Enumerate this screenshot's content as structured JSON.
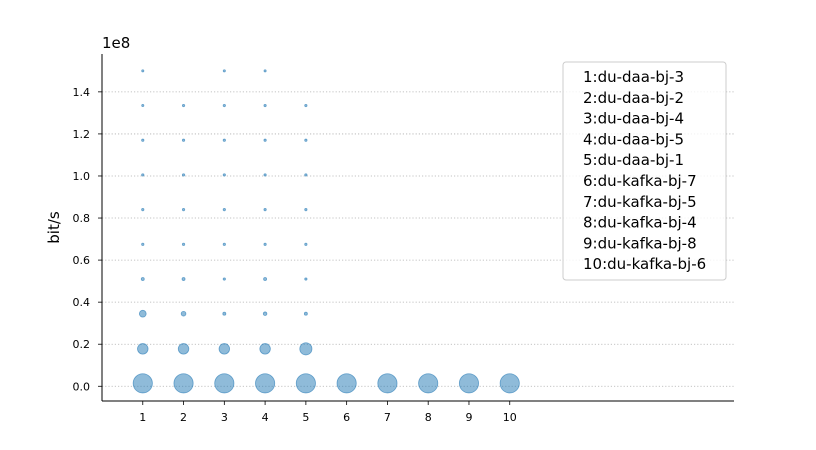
{
  "chart_data": {
    "type": "scatter",
    "title": "",
    "xlabel": "",
    "ylabel": "bit/s",
    "y_offset_label": "1e8",
    "x_ticks": [
      1,
      2,
      3,
      4,
      5,
      6,
      7,
      8,
      9,
      10
    ],
    "y_ticks": [
      0.0,
      0.2,
      0.4,
      0.6,
      0.8,
      1.0,
      1.2,
      1.4
    ],
    "y_tick_labels": [
      "0.0",
      "0.2",
      "0.4",
      "0.6",
      "0.8",
      "1.0",
      "1.2",
      "1.4"
    ],
    "xlim": [
      0,
      15.5
    ],
    "ylim": [
      -0.07,
      1.58
    ],
    "grid": "y-dotted",
    "color": "#1f77b4",
    "legend_position": "top-right",
    "legend": [
      "1:du-daa-bj-3",
      "2:du-daa-bj-2",
      "3:du-daa-bj-4",
      "4:du-daa-bj-5",
      "5:du-daa-bj-1",
      "6:du-kafka-bj-7",
      "7:du-kafka-bj-5",
      "8:du-kafka-bj-4",
      "9:du-kafka-bj-8",
      "10:du-kafka-bj-6"
    ],
    "points": [
      {
        "x": 1,
        "y": 0.014,
        "size": 200
      },
      {
        "x": 1,
        "y": 0.178,
        "size": 60
      },
      {
        "x": 1,
        "y": 0.345,
        "size": 25
      },
      {
        "x": 1,
        "y": 0.51,
        "size": 5
      },
      {
        "x": 1,
        "y": 0.675,
        "size": 3
      },
      {
        "x": 1,
        "y": 0.84,
        "size": 3
      },
      {
        "x": 1,
        "y": 1.005,
        "size": 3
      },
      {
        "x": 1,
        "y": 1.17,
        "size": 3
      },
      {
        "x": 1,
        "y": 1.335,
        "size": 2
      },
      {
        "x": 1,
        "y": 1.5,
        "size": 2
      },
      {
        "x": 2,
        "y": 0.014,
        "size": 200
      },
      {
        "x": 2,
        "y": 0.178,
        "size": 60
      },
      {
        "x": 2,
        "y": 0.345,
        "size": 12
      },
      {
        "x": 2,
        "y": 0.51,
        "size": 5
      },
      {
        "x": 2,
        "y": 0.675,
        "size": 3
      },
      {
        "x": 2,
        "y": 0.84,
        "size": 3
      },
      {
        "x": 2,
        "y": 1.005,
        "size": 3
      },
      {
        "x": 2,
        "y": 1.17,
        "size": 3
      },
      {
        "x": 2,
        "y": 1.335,
        "size": 3
      },
      {
        "x": 3,
        "y": 0.014,
        "size": 200
      },
      {
        "x": 3,
        "y": 0.178,
        "size": 60
      },
      {
        "x": 3,
        "y": 0.345,
        "size": 5
      },
      {
        "x": 3,
        "y": 0.51,
        "size": 3
      },
      {
        "x": 3,
        "y": 0.675,
        "size": 3
      },
      {
        "x": 3,
        "y": 0.84,
        "size": 3
      },
      {
        "x": 3,
        "y": 1.005,
        "size": 3
      },
      {
        "x": 3,
        "y": 1.17,
        "size": 3
      },
      {
        "x": 3,
        "y": 1.335,
        "size": 3
      },
      {
        "x": 3,
        "y": 1.5,
        "size": 2
      },
      {
        "x": 4,
        "y": 0.014,
        "size": 200
      },
      {
        "x": 4,
        "y": 0.178,
        "size": 60
      },
      {
        "x": 4,
        "y": 0.345,
        "size": 7
      },
      {
        "x": 4,
        "y": 0.51,
        "size": 5
      },
      {
        "x": 4,
        "y": 0.675,
        "size": 3
      },
      {
        "x": 4,
        "y": 0.84,
        "size": 3
      },
      {
        "x": 4,
        "y": 1.005,
        "size": 3
      },
      {
        "x": 4,
        "y": 1.17,
        "size": 3
      },
      {
        "x": 4,
        "y": 1.335,
        "size": 3
      },
      {
        "x": 4,
        "y": 1.5,
        "size": 2
      },
      {
        "x": 5,
        "y": 0.014,
        "size": 200
      },
      {
        "x": 5,
        "y": 0.178,
        "size": 80
      },
      {
        "x": 5,
        "y": 0.345,
        "size": 5
      },
      {
        "x": 5,
        "y": 0.51,
        "size": 3
      },
      {
        "x": 5,
        "y": 0.675,
        "size": 3
      },
      {
        "x": 5,
        "y": 0.84,
        "size": 3
      },
      {
        "x": 5,
        "y": 1.005,
        "size": 3
      },
      {
        "x": 5,
        "y": 1.17,
        "size": 3
      },
      {
        "x": 5,
        "y": 1.335,
        "size": 3
      },
      {
        "x": 6,
        "y": 0.014,
        "size": 200
      },
      {
        "x": 7,
        "y": 0.014,
        "size": 200
      },
      {
        "x": 8,
        "y": 0.014,
        "size": 200
      },
      {
        "x": 9,
        "y": 0.014,
        "size": 200
      },
      {
        "x": 10,
        "y": 0.014,
        "size": 200
      }
    ]
  }
}
